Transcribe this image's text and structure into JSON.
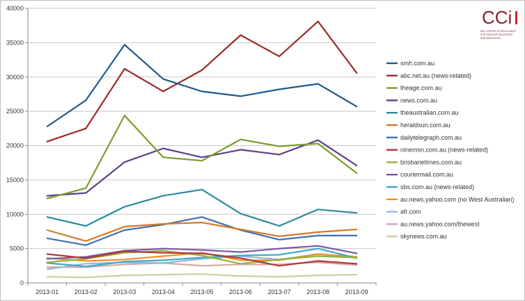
{
  "chart_data": {
    "type": "line",
    "categories": [
      "2013-01",
      "2013-02",
      "2013-03",
      "2013-04",
      "2013-05",
      "2013-06",
      "2013-07",
      "2013-08",
      "2013-09"
    ],
    "ylim": [
      0,
      40000
    ],
    "yticks": [
      0,
      5000,
      10000,
      15000,
      20000,
      25000,
      30000,
      35000,
      40000
    ],
    "grid": true,
    "legend_position": "right",
    "series": [
      {
        "name": "smh.com.au",
        "color": "#1f5a8c",
        "values": [
          22800,
          26600,
          34700,
          29700,
          27900,
          27200,
          28200,
          29000,
          25700
        ]
      },
      {
        "name": "abc.net.au (news-related)",
        "color": "#9b2a2a",
        "values": [
          20600,
          22500,
          31200,
          27900,
          31000,
          36100,
          33000,
          38100,
          30600
        ]
      },
      {
        "name": "theage.com.au",
        "color": "#7c9b2f",
        "values": [
          12300,
          13800,
          24400,
          18300,
          17800,
          20900,
          19900,
          20300,
          16000
        ]
      },
      {
        "name": "news.com.au",
        "color": "#5d3d8b",
        "values": [
          12700,
          13100,
          17600,
          19600,
          18300,
          19400,
          18700,
          20800,
          17100
        ]
      },
      {
        "name": "theaustralian.com.au",
        "color": "#2a8a9a",
        "values": [
          9600,
          8300,
          11100,
          12700,
          13600,
          10100,
          8300,
          10700,
          10200
        ]
      },
      {
        "name": "heraldsun.com.au",
        "color": "#d4792a",
        "values": [
          7700,
          6100,
          8200,
          8600,
          8800,
          7800,
          6800,
          7400,
          7800
        ]
      },
      {
        "name": "dailytelegraph.com.au",
        "color": "#3f6fb0",
        "values": [
          6500,
          5500,
          7700,
          8500,
          9600,
          7700,
          6300,
          6900,
          6900
        ]
      },
      {
        "name": "ninemsn.com.au (news-related)",
        "color": "#b03a3a",
        "values": [
          4200,
          3600,
          4600,
          4400,
          4300,
          3600,
          2500,
          3200,
          2800
        ]
      },
      {
        "name": "brisbanetimes.com.au",
        "color": "#93b33c",
        "values": [
          3000,
          3500,
          4400,
          4700,
          4000,
          2800,
          3400,
          3900,
          3700
        ]
      },
      {
        "name": "couriermail.com.au",
        "color": "#7a5aa8",
        "values": [
          3500,
          3800,
          4700,
          5000,
          4800,
          4500,
          5000,
          5400,
          4300
        ]
      },
      {
        "name": "sbs.com.au (news-related)",
        "color": "#3fa9c9",
        "values": [
          2900,
          2400,
          3100,
          3300,
          3700,
          4000,
          4100,
          5000,
          3600
        ]
      },
      {
        "name": "au.news.yahoo.com (no West Australian)",
        "color": "#f0912a",
        "values": [
          3600,
          3200,
          3400,
          3900,
          4400,
          3300,
          3300,
          4200,
          3800
        ]
      },
      {
        "name": "afr.com",
        "color": "#9ab5dc",
        "values": [
          2000,
          2800,
          3000,
          2900,
          3500,
          3900,
          3400,
          4200,
          3700
        ]
      },
      {
        "name": "au.news.yahoo.com/thewest",
        "color": "#dba3a3",
        "values": [
          2300,
          2300,
          2700,
          2900,
          2500,
          2700,
          2700,
          3000,
          2600
        ]
      },
      {
        "name": "skynews.com.au",
        "color": "#c3d5a0",
        "values": [
          900,
          800,
          1100,
          1200,
          1300,
          1000,
          900,
          1100,
          1200
        ]
      }
    ]
  },
  "logo": {
    "letters": "CCi",
    "caption_lines": [
      "ARC CENTRE OF EXCELLENCE",
      "FOR CREATIVE INDUSTRIES",
      "AND INNOVATION"
    ],
    "color": "#8a1f2b"
  }
}
